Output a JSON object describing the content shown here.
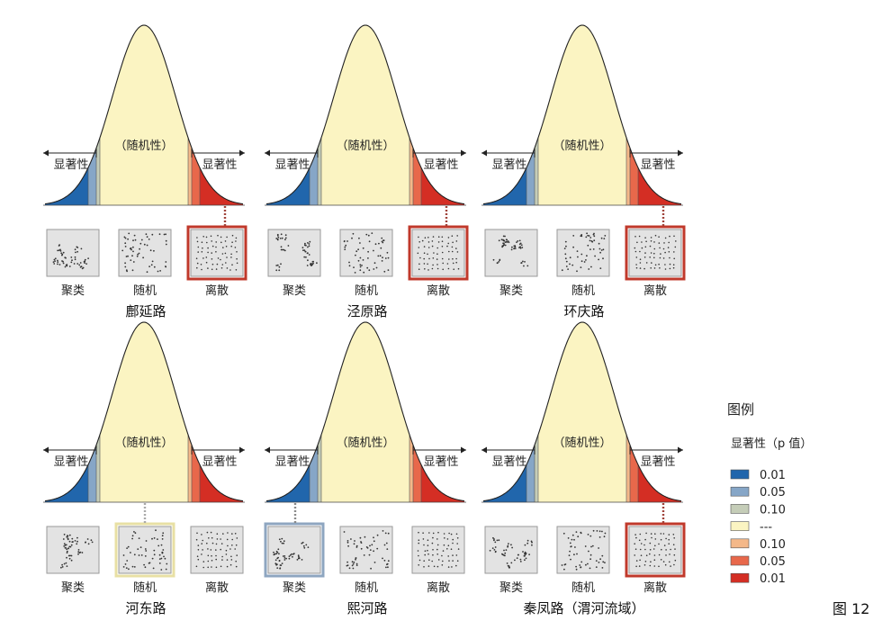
{
  "panels": [
    {
      "road_name": "鄜延路",
      "highlight": "dispersed",
      "highlight_level": "0.01"
    },
    {
      "road_name": "泾原路",
      "highlight": "dispersed",
      "highlight_level": "0.01"
    },
    {
      "road_name": "环庆路",
      "highlight": "dispersed",
      "highlight_level": "0.01"
    },
    {
      "road_name": "河东路",
      "highlight": "random",
      "highlight_level": "---"
    },
    {
      "road_name": "熙河路",
      "highlight": "clustered",
      "highlight_level": "0.05"
    },
    {
      "road_name": "秦凤路（渭河流域）",
      "highlight": "dispersed",
      "highlight_level": "0.01"
    }
  ],
  "labels": {
    "randomness": "（随机性）",
    "significance": "显著性",
    "clustered": "聚类",
    "random": "随机",
    "dispersed": "离散"
  },
  "legend": {
    "title": "图例",
    "subtitle": "显著性（p 值）",
    "items": [
      {
        "label": "0.01",
        "color": "#2166ac"
      },
      {
        "label": "0.05",
        "color": "#86a6c7"
      },
      {
        "label": "0.10",
        "color": "#c5cdb8"
      },
      {
        "label": "---",
        "color": "#fbf4c2"
      },
      {
        "label": "0.10",
        "color": "#f4b889"
      },
      {
        "label": "0.05",
        "color": "#e8684b"
      },
      {
        "label": "0.01",
        "color": "#d42e24"
      }
    ]
  },
  "figure_number": "图 12",
  "colors": {
    "blue_001": "#2166ac",
    "blue_005": "#86a6c7",
    "grey_010": "#c5cdb8",
    "yellow": "#fbf4c2",
    "orange_010": "#f4b889",
    "orange_005": "#e8684b",
    "red_001": "#d42e24",
    "box_fill": "#e3e3e3",
    "box_border": "#9a9a9a",
    "highlight_red": "#c0392b",
    "highlight_yellow": "#e8e0a4",
    "highlight_blue": "#8ea6c0"
  }
}
